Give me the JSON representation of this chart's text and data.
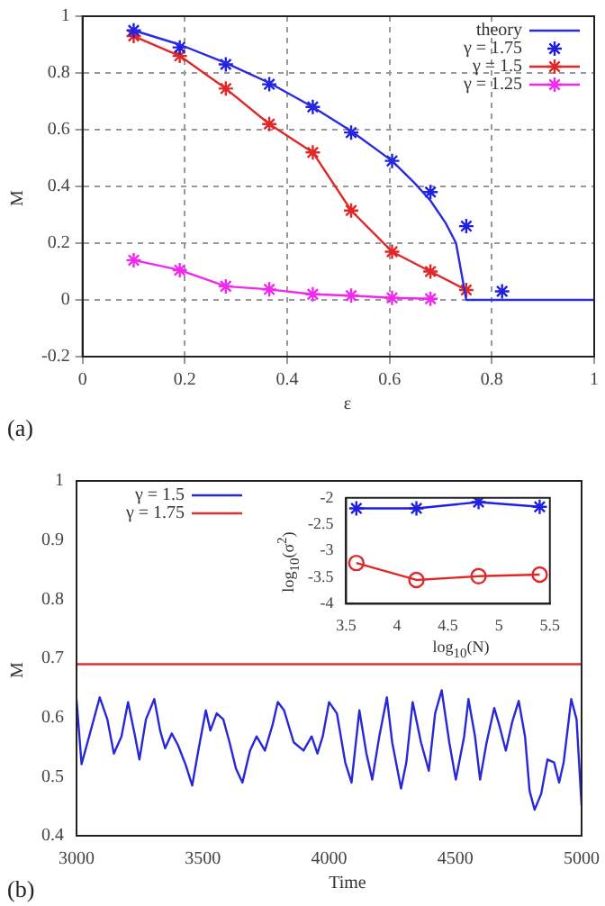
{
  "chart_data": [
    {
      "type": "line",
      "xlabel": "ε",
      "ylabel": "M",
      "annotations": [
        "(a)"
      ],
      "xlim": [
        0,
        1
      ],
      "xticks": [
        0,
        0.2,
        0.4,
        0.6,
        0.8,
        1
      ],
      "ylim": [
        -0.2,
        1
      ],
      "yticks": [
        -0.2,
        0,
        0.2,
        0.4,
        0.6,
        0.8,
        1
      ],
      "grid": true,
      "legend": "top right",
      "marker": "cross",
      "series": [
        {
          "name": "theory",
          "type": "line",
          "marker": "none",
          "color": "#2a2ae0",
          "x": [
            0.1,
            0.19,
            0.28,
            0.365,
            0.45,
            0.525,
            0.605,
            0.65,
            0.68,
            0.71,
            0.73,
            0.75,
            1.0
          ],
          "values": [
            0.95,
            0.9,
            0.835,
            0.765,
            0.68,
            0.595,
            0.49,
            0.41,
            0.35,
            0.27,
            0.2,
            0,
            0
          ]
        },
        {
          "name": "γ = 1.75",
          "type": "scatter",
          "color": "#2020e0",
          "x": [
            0.1,
            0.19,
            0.28,
            0.365,
            0.45,
            0.525,
            0.605,
            0.68,
            0.75,
            0.82
          ],
          "values": [
            0.95,
            0.89,
            0.83,
            0.76,
            0.68,
            0.59,
            0.49,
            0.38,
            0.26,
            0.03
          ]
        },
        {
          "name": "γ = 1.5",
          "color": "#e02828",
          "x": [
            0.1,
            0.19,
            0.28,
            0.365,
            0.45,
            0.525,
            0.605,
            0.68,
            0.75
          ],
          "values": [
            0.93,
            0.86,
            0.745,
            0.62,
            0.52,
            0.315,
            0.17,
            0.1,
            0.035
          ]
        },
        {
          "name": "γ = 1.25",
          "color": "#f028f0",
          "x": [
            0.1,
            0.19,
            0.28,
            0.365,
            0.45,
            0.525,
            0.605,
            0.68
          ],
          "values": [
            0.14,
            0.105,
            0.048,
            0.037,
            0.02,
            0.015,
            0.007,
            0.004
          ]
        }
      ]
    },
    {
      "type": "line",
      "xlabel": "Time",
      "ylabel": "M",
      "annotations": [
        "(b)"
      ],
      "xlim": [
        3000,
        5000
      ],
      "xticks": [
        3000,
        3500,
        4000,
        4500,
        5000
      ],
      "ylim": [
        0.4,
        1
      ],
      "yticks": [
        0.4,
        0.5,
        0.6,
        0.7,
        0.8,
        0.9,
        1
      ],
      "legend": "top left",
      "series": [
        {
          "name": "γ = 1.5",
          "color": "#2828d8",
          "x": [
            3000,
            3020,
            3092,
            3122,
            3148,
            3178,
            3204,
            3232,
            3249,
            3275,
            3308,
            3331,
            3351,
            3377,
            3402,
            3433,
            3458,
            3484,
            3512,
            3530,
            3555,
            3581,
            3606,
            3631,
            3657,
            3687,
            3713,
            3746,
            3776,
            3797,
            3822,
            3860,
            3899,
            3931,
            3954,
            3975,
            4000,
            4031,
            4064,
            4089,
            4120,
            4148,
            4171,
            4199,
            4229,
            4250,
            4285,
            4306,
            4331,
            4364,
            4395,
            4420,
            4446,
            4476,
            4502,
            4535,
            4552,
            4578,
            4598,
            4624,
            4654,
            4674,
            4700,
            4725,
            4751,
            4776,
            4794,
            4814,
            4840,
            4865,
            4891,
            4911,
            4929,
            4959,
            4980,
            5000
          ],
          "values": [
            0.63,
            0.521,
            0.634,
            0.597,
            0.539,
            0.568,
            0.626,
            0.568,
            0.529,
            0.597,
            0.631,
            0.578,
            0.548,
            0.573,
            0.553,
            0.519,
            0.485,
            0.548,
            0.612,
            0.578,
            0.607,
            0.597,
            0.558,
            0.514,
            0.49,
            0.544,
            0.568,
            0.544,
            0.587,
            0.626,
            0.612,
            0.558,
            0.544,
            0.568,
            0.539,
            0.568,
            0.626,
            0.607,
            0.524,
            0.49,
            0.612,
            0.539,
            0.495,
            0.568,
            0.634,
            0.558,
            0.48,
            0.524,
            0.626,
            0.558,
            0.51,
            0.607,
            0.646,
            0.558,
            0.495,
            0.568,
            0.631,
            0.568,
            0.495,
            0.558,
            0.616,
            0.587,
            0.544,
            0.592,
            0.628,
            0.568,
            0.476,
            0.444,
            0.471,
            0.529,
            0.524,
            0.49,
            0.524,
            0.631,
            0.597,
            0.451
          ]
        },
        {
          "name": "γ = 1.75",
          "color": "#e03030",
          "x": [
            3000,
            3500,
            4000,
            4500,
            5000
          ],
          "values": [
            0.69,
            0.69,
            0.69,
            0.69,
            0.69
          ]
        }
      ]
    },
    {
      "type": "line",
      "xlabel": "log$_{10}$(N)",
      "ylabel": "log$_{10}$(σ$^{2}$)",
      "xlim": [
        3.5,
        5.5
      ],
      "xticks": [
        3.5,
        4,
        4.5,
        5,
        5.5
      ],
      "ylim": [
        -4,
        -2
      ],
      "yticks": [
        -4,
        -3.5,
        -3,
        -2.5,
        -2
      ],
      "series": [
        {
          "color": "#2020e0",
          "marker": "cross",
          "x": [
            3.6,
            4.19,
            4.8,
            5.4
          ],
          "values": [
            -2.2,
            -2.2,
            -2.08,
            -2.17
          ]
        },
        {
          "color": "#e02828",
          "marker": "circle",
          "x": [
            3.6,
            4.19,
            4.8,
            5.4
          ],
          "values": [
            -3.23,
            -3.55,
            -3.48,
            -3.45
          ]
        }
      ]
    }
  ]
}
